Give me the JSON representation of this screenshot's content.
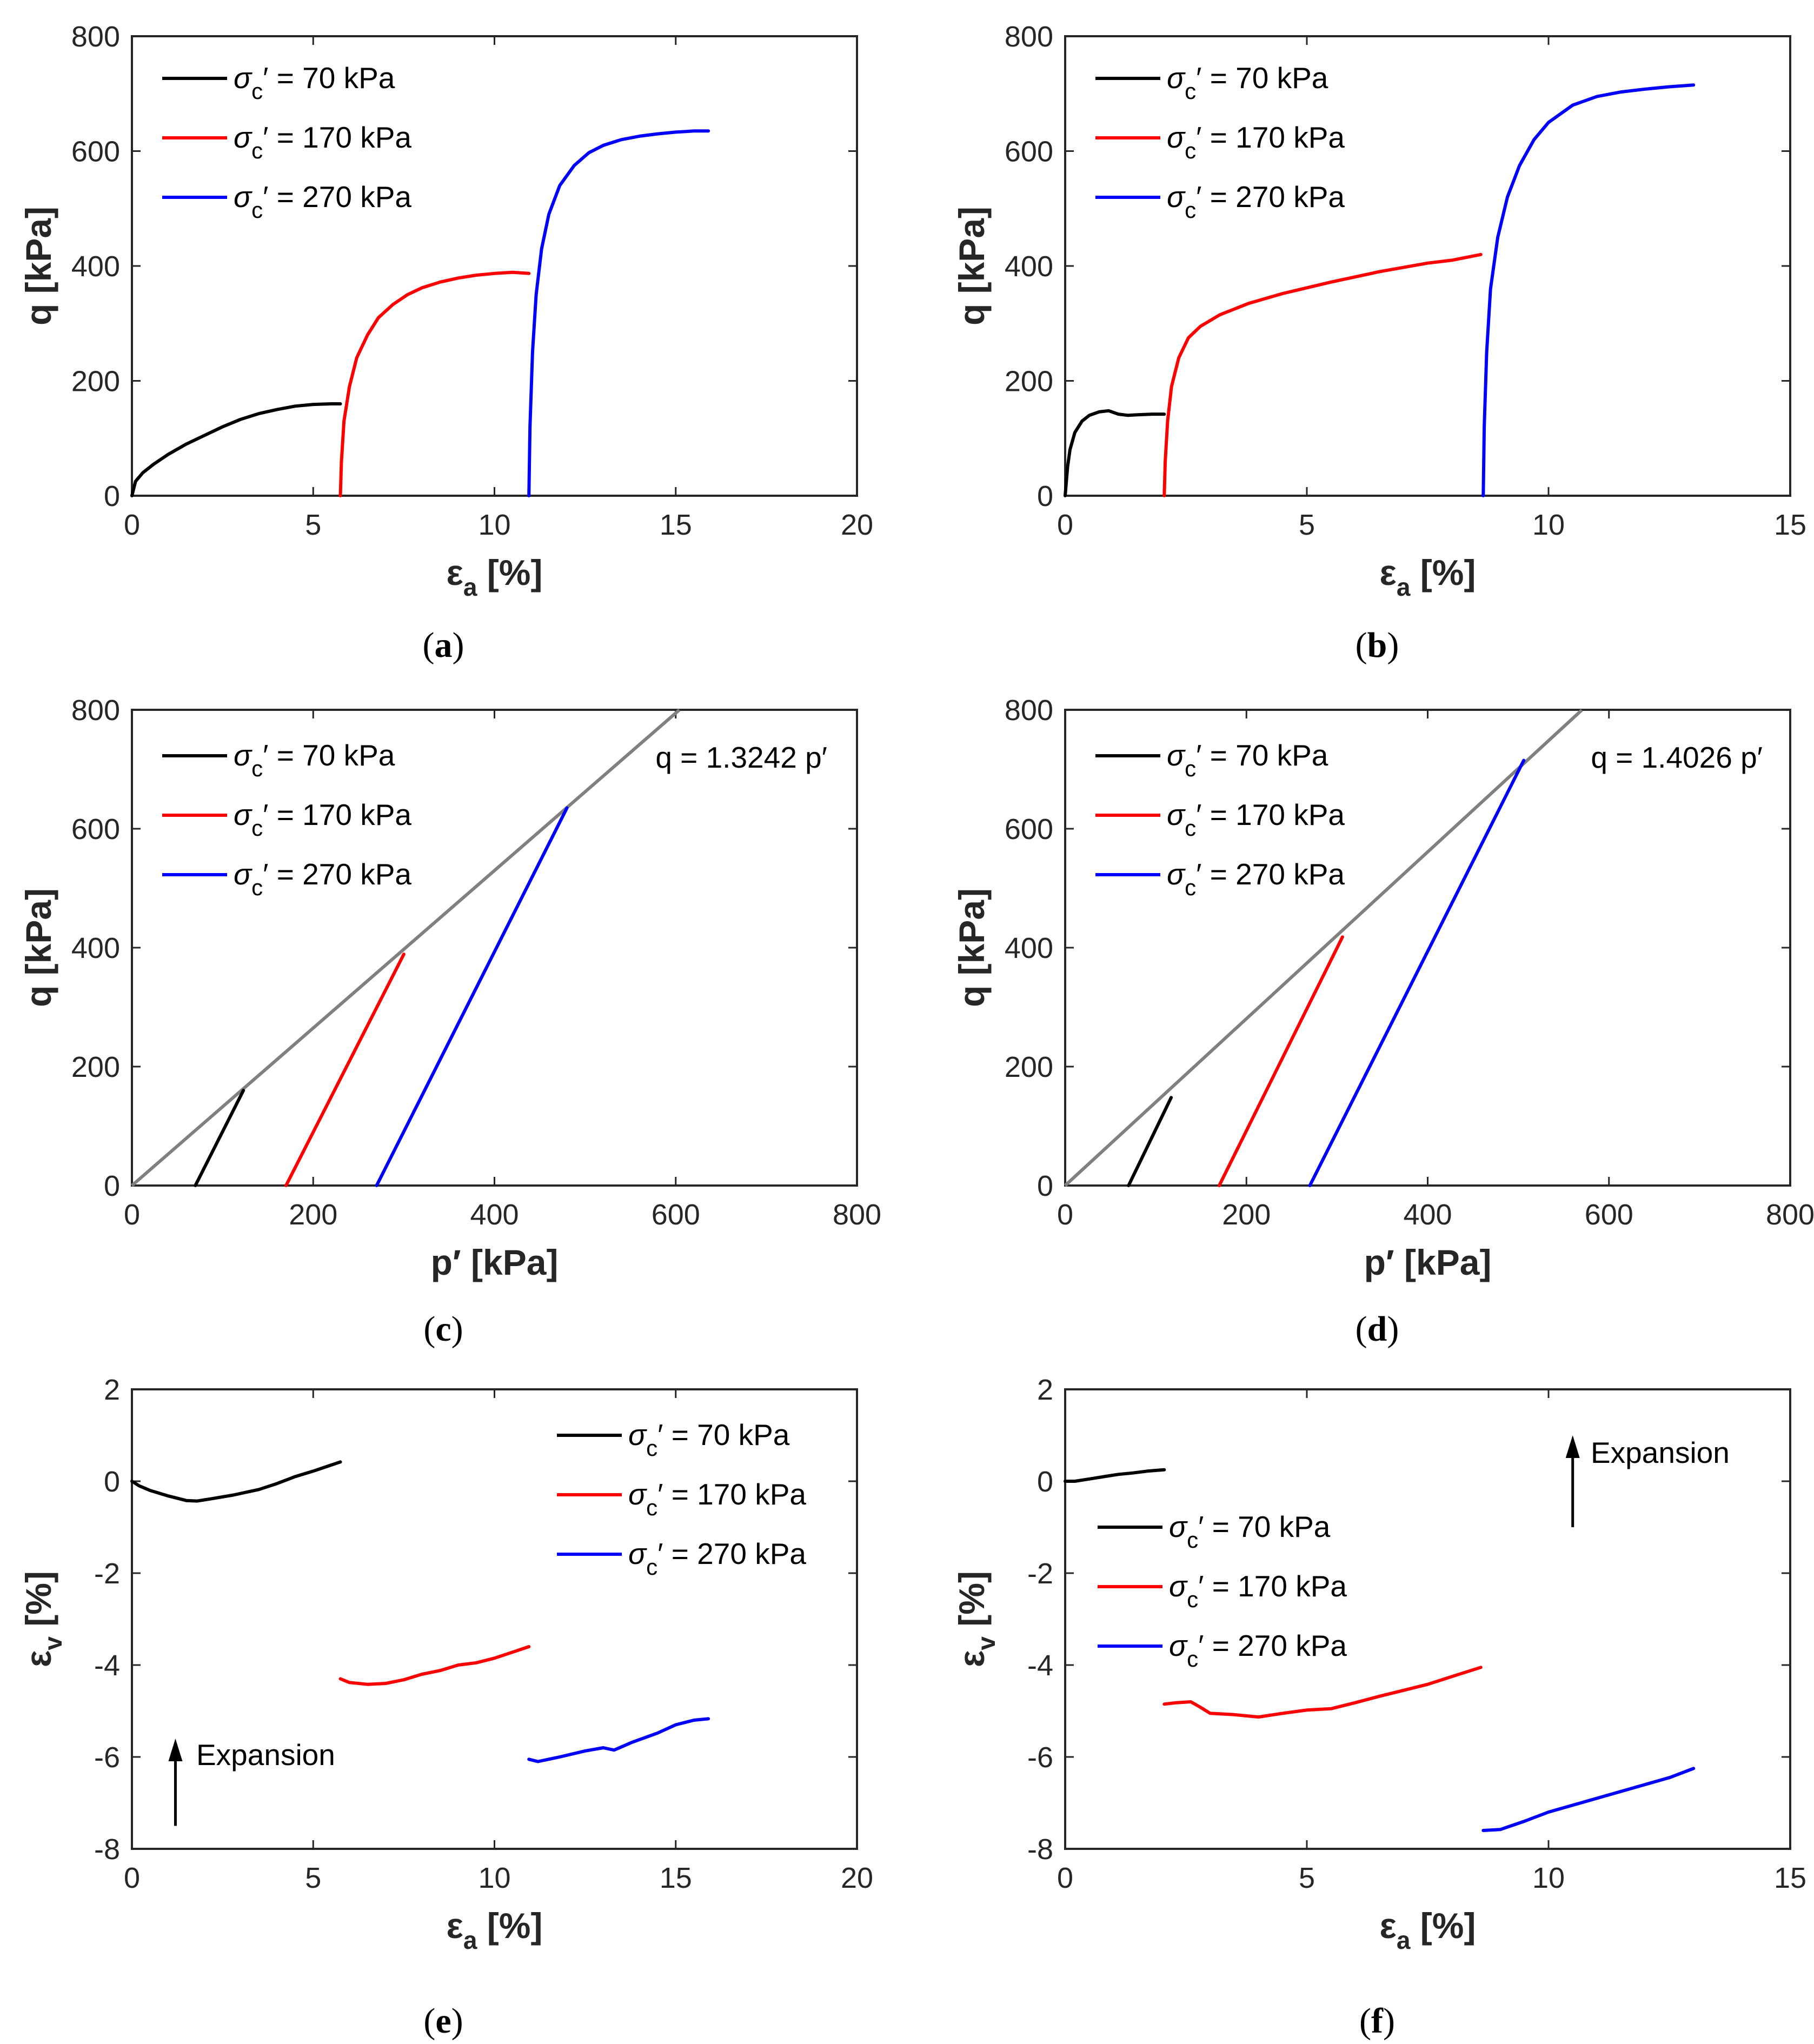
{
  "colors": {
    "s70": "#000000",
    "s170": "#ff0000",
    "s270": "#0000ff",
    "csl": "#808080",
    "axis": "#262626"
  },
  "chart_data": [
    {
      "panel": "a",
      "type": "line",
      "caption": "a",
      "xlabel": "ε",
      "xlabel_sub": "a",
      "xlabel_unit": "[%]",
      "ylabel": "q [kPa]",
      "xlim": [
        0,
        20
      ],
      "ylim": [
        0,
        800
      ],
      "xticks": [
        0,
        5,
        10,
        15,
        20
      ],
      "yticks": [
        0,
        200,
        400,
        600,
        800
      ],
      "legend_position": "top-left",
      "series": [
        {
          "name": "σc′ = 70 kPa",
          "color": "#000000",
          "x": [
            0,
            0.1,
            0.3,
            0.6,
            1,
            1.5,
            2,
            2.5,
            3,
            3.5,
            4,
            4.5,
            5,
            5.5,
            5.75
          ],
          "y": [
            0,
            25,
            40,
            55,
            72,
            90,
            105,
            120,
            133,
            143,
            150,
            156,
            159,
            160,
            160
          ]
        },
        {
          "name": "σc′ = 170 kPa",
          "color": "#ff0000",
          "x": [
            5.75,
            5.78,
            5.85,
            6.0,
            6.2,
            6.5,
            6.8,
            7.2,
            7.6,
            8,
            8.5,
            9,
            9.5,
            10,
            10.5,
            10.95
          ],
          "y": [
            0,
            60,
            130,
            190,
            240,
            280,
            310,
            333,
            350,
            362,
            372,
            379,
            384,
            387,
            389,
            387
          ]
        },
        {
          "name": "σc′ = 270 kPa",
          "color": "#0000ff",
          "x": [
            10.95,
            10.98,
            11.05,
            11.15,
            11.3,
            11.5,
            11.8,
            12.2,
            12.6,
            13,
            13.5,
            14,
            14.5,
            15,
            15.5,
            15.9
          ],
          "y": [
            0,
            120,
            250,
            350,
            430,
            490,
            540,
            575,
            597,
            610,
            620,
            626,
            630,
            633,
            635,
            635
          ]
        }
      ]
    },
    {
      "panel": "b",
      "type": "line",
      "caption": "b",
      "xlabel": "ε",
      "xlabel_sub": "a",
      "xlabel_unit": "[%]",
      "ylabel": "q [kPa]",
      "xlim": [
        0,
        15
      ],
      "ylim": [
        0,
        800
      ],
      "xticks": [
        0,
        5,
        10,
        15
      ],
      "yticks": [
        0,
        200,
        400,
        600,
        800
      ],
      "legend_position": "top-left",
      "series": [
        {
          "name": "σc′ = 70 kPa",
          "color": "#000000",
          "x": [
            0,
            0.05,
            0.1,
            0.2,
            0.35,
            0.5,
            0.7,
            0.9,
            1.1,
            1.3,
            1.5,
            1.8,
            2.05
          ],
          "y": [
            0,
            50,
            80,
            110,
            130,
            140,
            146,
            148,
            142,
            140,
            141,
            142,
            142
          ]
        },
        {
          "name": "σc′ = 170 kPa",
          "color": "#ff0000",
          "x": [
            2.05,
            2.07,
            2.12,
            2.2,
            2.35,
            2.55,
            2.8,
            3.2,
            3.8,
            4.5,
            5.5,
            6.5,
            7.5,
            8.0,
            8.6
          ],
          "y": [
            0,
            60,
            130,
            190,
            240,
            275,
            295,
            315,
            335,
            352,
            372,
            390,
            405,
            410,
            420
          ]
        },
        {
          "name": "σc′ = 270 kPa",
          "color": "#0000ff",
          "x": [
            8.65,
            8.67,
            8.72,
            8.8,
            8.95,
            9.15,
            9.4,
            9.7,
            10,
            10.5,
            11,
            11.5,
            12,
            12.5,
            13.0
          ],
          "y": [
            0,
            120,
            250,
            360,
            450,
            520,
            575,
            620,
            650,
            680,
            695,
            703,
            708,
            712,
            715
          ]
        }
      ]
    },
    {
      "panel": "c",
      "type": "line",
      "caption": "c",
      "xlabel": "p′ [kPa]",
      "ylabel": "q [kPa]",
      "xlim": [
        0,
        800
      ],
      "ylim": [
        0,
        800
      ],
      "xticks": [
        0,
        200,
        400,
        600,
        800
      ],
      "yticks": [
        0,
        200,
        400,
        600,
        800
      ],
      "legend_position": "top-left",
      "annotation": "q = 1.3242 p′",
      "csl": {
        "slope": 1.3242,
        "x": [
          0,
          604
        ]
      },
      "series": [
        {
          "name": "σc′ = 70 kPa",
          "color": "#000000",
          "x": [
            70,
            123
          ],
          "y": [
            0,
            160
          ]
        },
        {
          "name": "σc′ = 170 kPa",
          "color": "#ff0000",
          "x": [
            170,
            300
          ],
          "y": [
            0,
            389
          ]
        },
        {
          "name": "σc′ = 270 kPa",
          "color": "#0000ff",
          "x": [
            270,
            480
          ],
          "y": [
            0,
            635
          ]
        }
      ]
    },
    {
      "panel": "d",
      "type": "line",
      "caption": "d",
      "xlabel": "p′ [kPa]",
      "ylabel": "q [kPa]",
      "xlim": [
        0,
        800
      ],
      "ylim": [
        0,
        800
      ],
      "xticks": [
        0,
        200,
        400,
        600,
        800
      ],
      "yticks": [
        0,
        200,
        400,
        600,
        800
      ],
      "legend_position": "top-left",
      "annotation": "q = 1.4026 p′",
      "csl": {
        "slope": 1.4026,
        "x": [
          0,
          570
        ]
      },
      "series": [
        {
          "name": "σc′ = 70 kPa",
          "color": "#000000",
          "x": [
            70,
            117
          ],
          "y": [
            0,
            148
          ]
        },
        {
          "name": "σc′ = 170 kPa",
          "color": "#ff0000",
          "x": [
            170,
            306
          ],
          "y": [
            0,
            418
          ]
        },
        {
          "name": "σc′ = 270 kPa",
          "color": "#0000ff",
          "x": [
            270,
            506
          ],
          "y": [
            0,
            715
          ]
        }
      ]
    },
    {
      "panel": "e",
      "type": "line",
      "caption": "e",
      "xlabel": "ε",
      "xlabel_sub": "a",
      "xlabel_unit": "[%]",
      "ylabel": "ε",
      "ylabel_sub": "v",
      "ylabel_unit": "[%]",
      "xlim": [
        0,
        20
      ],
      "ylim": [
        -8,
        2
      ],
      "xticks": [
        0,
        5,
        10,
        15,
        20
      ],
      "yticks": [
        -8,
        -6,
        -4,
        -2,
        0,
        2
      ],
      "legend_position": "top-right",
      "annotation": "Expansion",
      "arrow": {
        "x": 1.2,
        "y_from": -7.5,
        "y_to": -5.6
      },
      "series": [
        {
          "name": "σc′ = 70 kPa",
          "color": "#000000",
          "x": [
            0,
            0.2,
            0.5,
            1,
            1.5,
            1.8,
            2.2,
            2.8,
            3.5,
            4,
            4.5,
            5,
            5.3,
            5.75
          ],
          "y": [
            0,
            -0.1,
            -0.2,
            -0.32,
            -0.42,
            -0.43,
            -0.38,
            -0.3,
            -0.18,
            -0.05,
            0.1,
            0.22,
            0.3,
            0.42
          ]
        },
        {
          "name": "σc′ = 170 kPa",
          "color": "#ff0000",
          "x": [
            5.75,
            6,
            6.5,
            7,
            7.5,
            8,
            8.5,
            9,
            9.5,
            10,
            10.5,
            10.95
          ],
          "y": [
            -4.3,
            -4.38,
            -4.42,
            -4.4,
            -4.32,
            -4.2,
            -4.12,
            -4.0,
            -3.95,
            -3.85,
            -3.72,
            -3.6
          ]
        },
        {
          "name": "σc′ = 270 kPa",
          "color": "#0000ff",
          "x": [
            10.95,
            11.2,
            11.8,
            12.5,
            13,
            13.3,
            13.8,
            14.5,
            15,
            15.5,
            15.9
          ],
          "y": [
            -6.05,
            -6.1,
            -6.0,
            -5.87,
            -5.8,
            -5.85,
            -5.68,
            -5.48,
            -5.3,
            -5.2,
            -5.17
          ]
        }
      ]
    },
    {
      "panel": "f",
      "type": "line",
      "caption": "f",
      "xlabel": "ε",
      "xlabel_sub": "a",
      "xlabel_unit": "[%]",
      "ylabel": "ε",
      "ylabel_sub": "v",
      "ylabel_unit": "[%]",
      "xlim": [
        0,
        15
      ],
      "ylim": [
        -8,
        2
      ],
      "xticks": [
        0,
        5,
        10,
        15
      ],
      "yticks": [
        -8,
        -6,
        -4,
        -2,
        0,
        2
      ],
      "legend_position": "center-left",
      "annotation": "Expansion",
      "arrow": {
        "x": 10.5,
        "y_from": -1.0,
        "y_to": 1.0
      },
      "series": [
        {
          "name": "σc′ = 70 kPa",
          "color": "#000000",
          "x": [
            0,
            0.2,
            0.5,
            0.8,
            1.1,
            1.4,
            1.7,
            2.05
          ],
          "y": [
            0,
            0,
            0.05,
            0.1,
            0.15,
            0.18,
            0.22,
            0.25
          ]
        },
        {
          "name": "σc′ = 170 kPa",
          "color": "#ff0000",
          "x": [
            2.05,
            2.3,
            2.6,
            2.8,
            3.0,
            3.5,
            4,
            4.5,
            5,
            5.5,
            6,
            6.5,
            7,
            7.5,
            8,
            8.6
          ],
          "y": [
            -4.85,
            -4.82,
            -4.8,
            -4.92,
            -5.05,
            -5.08,
            -5.13,
            -5.05,
            -4.98,
            -4.95,
            -4.82,
            -4.68,
            -4.55,
            -4.42,
            -4.25,
            -4.05
          ]
        },
        {
          "name": "σc′ = 270 kPa",
          "color": "#0000ff",
          "x": [
            8.65,
            9.0,
            9.5,
            10,
            10.5,
            11,
            11.5,
            12,
            12.5,
            13.0
          ],
          "y": [
            -7.6,
            -7.58,
            -7.4,
            -7.2,
            -7.05,
            -6.9,
            -6.75,
            -6.6,
            -6.45,
            -6.25
          ]
        }
      ]
    }
  ]
}
